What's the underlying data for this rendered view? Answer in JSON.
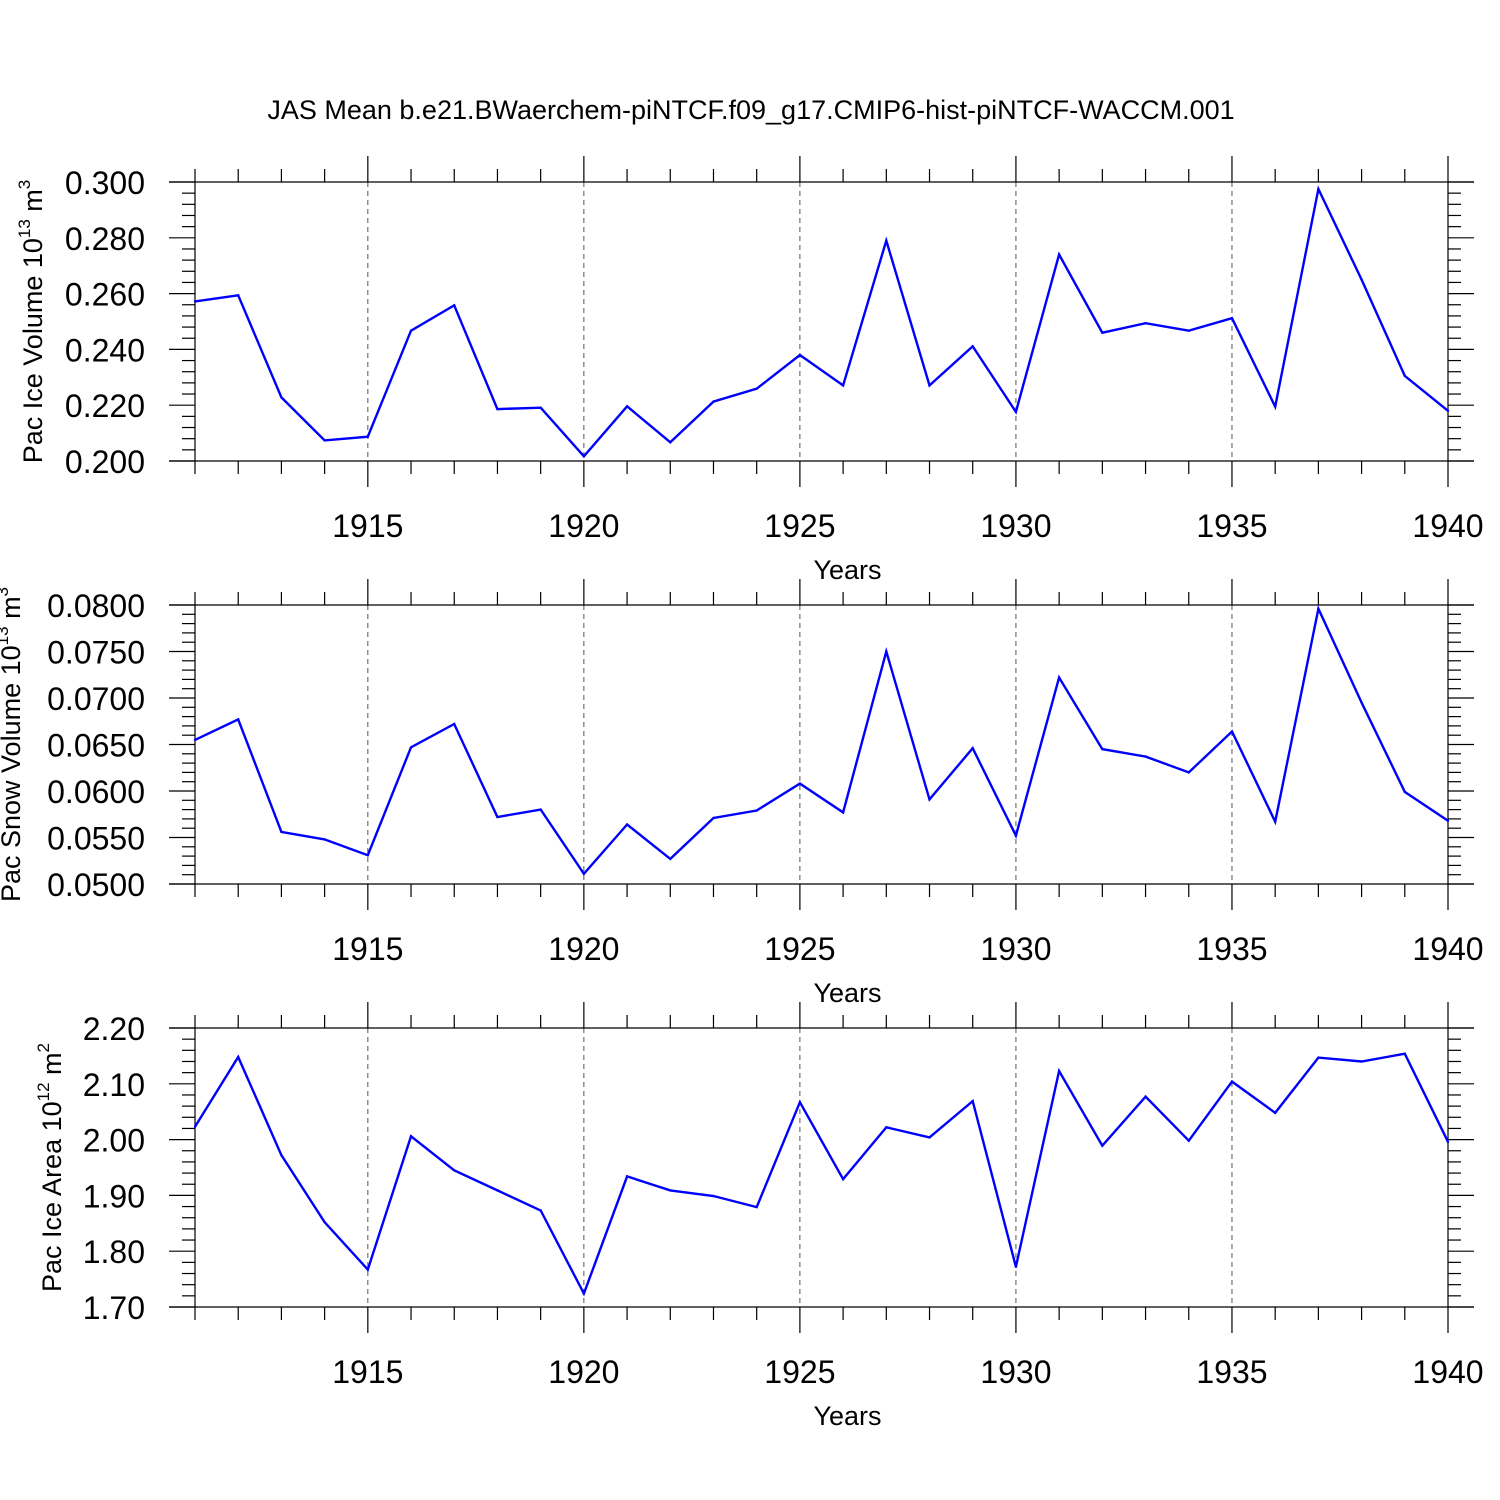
{
  "figure": {
    "title": "JAS Mean b.e21.BWaerchem-piNTCF.f09_g17.CMIP6-hist-piNTCF-WACCM.001",
    "line_color": "#0000ff"
  },
  "chart_data": [
    {
      "type": "line",
      "title": "JAS Mean b.e21.BWaerchem-piNTCF.f09_g17.CMIP6-hist-piNTCF-WACCM.001",
      "xlabel": "Years",
      "ylabel_main": "Pac Ice Volume 10",
      "ylabel_sup": "13",
      "ylabel_unit": " m",
      "ylabel_unit_sup": "3",
      "xlim": [
        1911,
        1940
      ],
      "ylim": [
        0.2,
        0.3
      ],
      "x_ticks": [
        1915,
        1920,
        1925,
        1930,
        1935,
        1940
      ],
      "x_tick_labels": [
        "1915",
        "1920",
        "1925",
        "1930",
        "1935",
        "1940"
      ],
      "y_ticks": [
        0.2,
        0.22,
        0.24,
        0.26,
        0.28,
        0.3
      ],
      "y_tick_labels": [
        "0.200",
        "0.220",
        "0.240",
        "0.260",
        "0.280",
        "0.300"
      ],
      "grid": "vertical dashed at major x ticks",
      "x": [
        1911,
        1912,
        1913,
        1914,
        1915,
        1916,
        1917,
        1918,
        1919,
        1920,
        1921,
        1922,
        1923,
        1924,
        1925,
        1926,
        1927,
        1928,
        1929,
        1930,
        1931,
        1932,
        1933,
        1934,
        1935,
        1936,
        1937,
        1938,
        1939,
        1940
      ],
      "values": [
        0.2572,
        0.2594,
        0.2228,
        0.2074,
        0.2087,
        0.2467,
        0.2558,
        0.2186,
        0.2191,
        0.2017,
        0.2196,
        0.2067,
        0.2213,
        0.2259,
        0.238,
        0.2271,
        0.279,
        0.2271,
        0.2411,
        0.2176,
        0.274,
        0.246,
        0.2494,
        0.2467,
        0.2512,
        0.2195,
        0.2975,
        0.265,
        0.2305,
        0.218
      ]
    },
    {
      "type": "line",
      "xlabel": "Years",
      "ylabel_main": "Pac Snow Volume 10",
      "ylabel_sup": "13",
      "ylabel_unit": " m",
      "ylabel_unit_sup": "3",
      "xlim": [
        1911,
        1940
      ],
      "ylim": [
        0.05,
        0.08
      ],
      "x_ticks": [
        1915,
        1920,
        1925,
        1930,
        1935,
        1940
      ],
      "x_tick_labels": [
        "1915",
        "1920",
        "1925",
        "1930",
        "1935",
        "1940"
      ],
      "y_ticks": [
        0.05,
        0.055,
        0.06,
        0.065,
        0.07,
        0.075,
        0.08
      ],
      "y_tick_labels": [
        "0.0500",
        "0.0550",
        "0.0600",
        "0.0650",
        "0.0700",
        "0.0750",
        "0.0800"
      ],
      "grid": "vertical dashed at major x ticks",
      "x": [
        1911,
        1912,
        1913,
        1914,
        1915,
        1916,
        1917,
        1918,
        1919,
        1920,
        1921,
        1922,
        1923,
        1924,
        1925,
        1926,
        1927,
        1928,
        1929,
        1930,
        1931,
        1932,
        1933,
        1934,
        1935,
        1936,
        1937,
        1938,
        1939,
        1940
      ],
      "values": [
        0.0655,
        0.0677,
        0.0556,
        0.0548,
        0.0531,
        0.0647,
        0.0672,
        0.0572,
        0.058,
        0.0511,
        0.0564,
        0.0527,
        0.0571,
        0.0579,
        0.0608,
        0.0577,
        0.075,
        0.0591,
        0.0646,
        0.0552,
        0.0722,
        0.0645,
        0.0637,
        0.062,
        0.0664,
        0.0567,
        0.0796,
        0.0695,
        0.0599,
        0.0568
      ]
    },
    {
      "type": "line",
      "xlabel": "Years",
      "ylabel_main": "Pac Ice Area 10",
      "ylabel_sup": "12",
      "ylabel_unit": " m",
      "ylabel_unit_sup": "2",
      "xlim": [
        1911,
        1940
      ],
      "ylim": [
        1.7,
        2.2
      ],
      "x_ticks": [
        1915,
        1920,
        1925,
        1930,
        1935,
        1940
      ],
      "x_tick_labels": [
        "1915",
        "1920",
        "1925",
        "1930",
        "1935",
        "1940"
      ],
      "y_ticks": [
        1.7,
        1.8,
        1.9,
        2.0,
        2.1,
        2.2
      ],
      "y_tick_labels": [
        "1.70",
        "1.80",
        "1.90",
        "2.00",
        "2.10",
        "2.20"
      ],
      "grid": "vertical dashed at major x ticks",
      "x": [
        1911,
        1912,
        1913,
        1914,
        1915,
        1916,
        1917,
        1918,
        1919,
        1920,
        1921,
        1922,
        1923,
        1924,
        1925,
        1926,
        1927,
        1928,
        1929,
        1930,
        1931,
        1932,
        1933,
        1934,
        1935,
        1936,
        1937,
        1938,
        1939,
        1940
      ],
      "values": [
        2.023,
        2.148,
        1.972,
        1.852,
        1.767,
        2.006,
        1.945,
        1.909,
        1.873,
        1.724,
        1.934,
        1.909,
        1.899,
        1.879,
        2.067,
        1.929,
        2.022,
        2.004,
        2.069,
        1.772,
        2.123,
        1.989,
        2.077,
        1.998,
        2.104,
        2.048,
        2.147,
        2.14,
        2.154,
        1.996
      ]
    }
  ]
}
